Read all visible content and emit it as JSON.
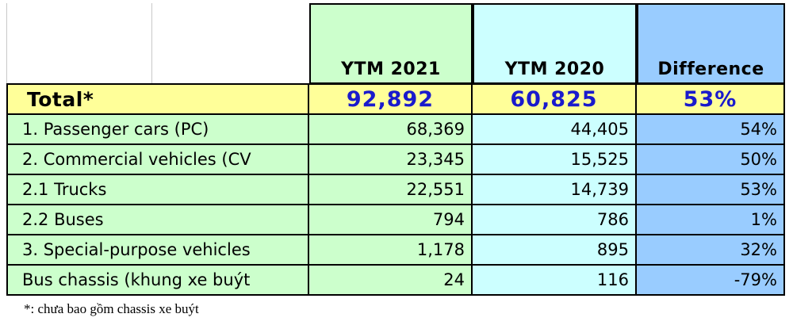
{
  "table": {
    "headers": [
      "YTM 2021",
      "YTM 2020",
      "Difference"
    ],
    "total": {
      "label": "Total*",
      "ytm2021": "92,892",
      "ytm2020": "60,825",
      "difference": "53%"
    },
    "rows": [
      {
        "label": "1. Passenger cars (PC)",
        "ytm2021": "68,369",
        "ytm2020": "44,405",
        "difference": "54%"
      },
      {
        "label": "2. Commercial vehicles (CV",
        "ytm2021": "23,345",
        "ytm2020": "15,525",
        "difference": "50%"
      },
      {
        "label": "2.1 Trucks",
        "ytm2021": "22,551",
        "ytm2020": "14,739",
        "difference": "53%"
      },
      {
        "label": "2.2 Buses",
        "ytm2021": "794",
        "ytm2020": "786",
        "difference": "1%"
      },
      {
        "label": "3. Special-purpose vehicles",
        "ytm2021": "1,178",
        "ytm2020": "895",
        "difference": "32%"
      },
      {
        "label": "Bus chassis (khung xe buýt",
        "ytm2021": "24",
        "ytm2020": "116",
        "difference": "-79%"
      }
    ]
  },
  "footnote": "*: chưa bao gồm chassis xe buýt",
  "colors": {
    "ytm2021_bg": "#ccffcc",
    "ytm2020_bg": "#ccffff",
    "difference_bg": "#99ccff",
    "total_bg": "#ffff99",
    "label_bg": "#ccffcc",
    "total_value_text": "#1a1acc"
  }
}
